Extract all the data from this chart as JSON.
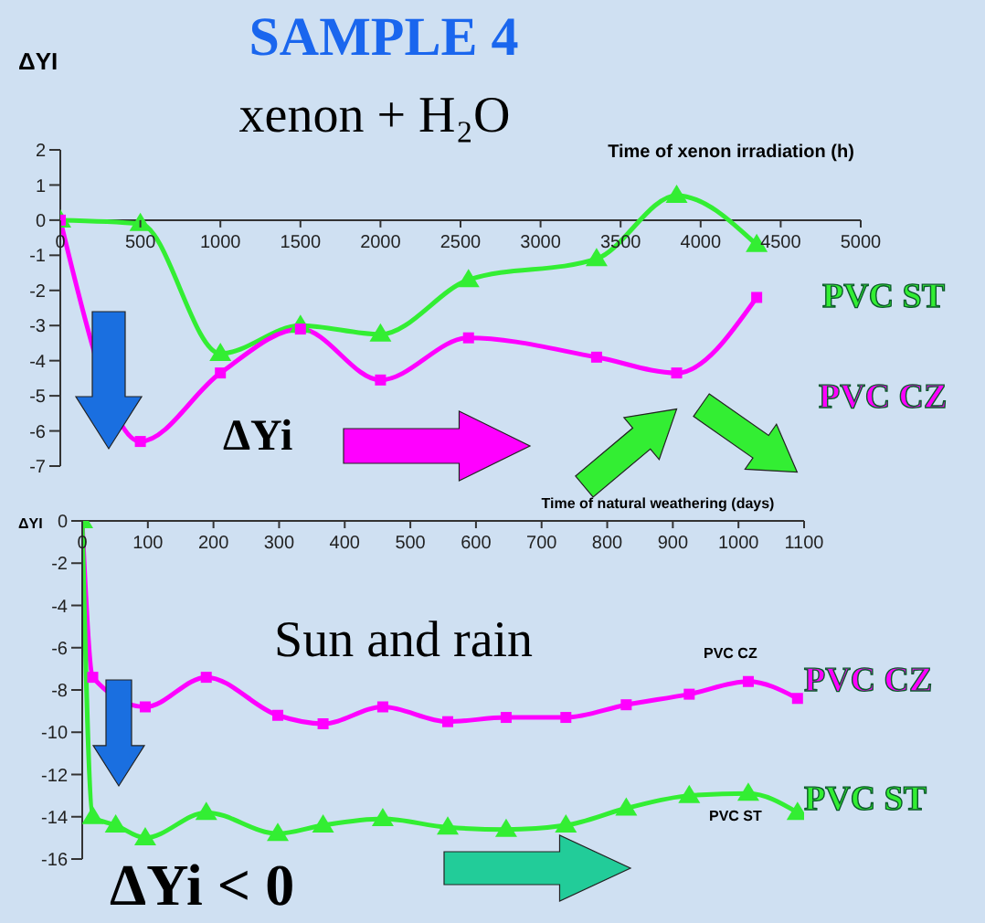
{
  "chart_data": [
    {
      "type": "line",
      "title": "SAMPLE 4",
      "subtitle": "xenon + H₂O",
      "ylabel": "ΔYI",
      "xlabel": "Time of xenon irradiation (h)",
      "annotations": [
        "ΔYi"
      ],
      "xlim": [
        0,
        5000
      ],
      "xticks": [
        0,
        500,
        1000,
        1500,
        2000,
        2500,
        3000,
        3500,
        4000,
        4500,
        5000
      ],
      "ylim": [
        -7,
        2
      ],
      "yticks": [
        -7,
        -6,
        -5,
        -4,
        -3,
        -2,
        -1,
        0,
        1,
        2
      ],
      "series": [
        {
          "name": "PVC ST",
          "color": "#33ee33",
          "marker": "triangle",
          "x": [
            0,
            500,
            1000,
            1500,
            2000,
            2550,
            3350,
            3850,
            4350
          ],
          "values": [
            0,
            -0.1,
            -3.8,
            -3.0,
            -3.25,
            -1.7,
            -1.1,
            0.7,
            -0.7
          ]
        },
        {
          "name": "PVC CZ",
          "color": "#ff00ff",
          "marker": "square",
          "x": [
            0,
            500,
            1000,
            1500,
            2000,
            2550,
            3350,
            3850,
            4350
          ],
          "values": [
            0,
            -6.3,
            -4.35,
            -3.1,
            -4.55,
            -3.35,
            -3.9,
            -4.35,
            -2.2
          ]
        }
      ]
    },
    {
      "type": "line",
      "ylabel": "ΔYI",
      "xlabel": "Time of natural weathering (days)",
      "annotations": [
        "Sun and rain",
        "PVC CZ",
        "PVC ST",
        "ΔYi < 0"
      ],
      "xlim": [
        0,
        1100
      ],
      "xticks": [
        0,
        100,
        200,
        300,
        400,
        500,
        600,
        700,
        800,
        900,
        1000,
        1100
      ],
      "ylim": [
        -16,
        0
      ],
      "yticks": [
        -16,
        -14,
        -12,
        -10,
        -8,
        -6,
        -4,
        -2,
        0
      ],
      "series": [
        {
          "name": "PVC CZ",
          "color": "#ff00ff",
          "marker": "square",
          "x": [
            0,
            16,
            96,
            189,
            298,
            367,
            458,
            557,
            646,
            737,
            829,
            925,
            1015,
            1090
          ],
          "values": [
            0,
            -7.4,
            -8.8,
            -7.4,
            -9.2,
            -9.6,
            -8.8,
            -9.5,
            -9.3,
            -9.3,
            -8.7,
            -8.2,
            -7.6,
            -8.4
          ]
        },
        {
          "name": "PVC ST",
          "color": "#33ee33",
          "marker": "triangle",
          "x": [
            0,
            16,
            51,
            96,
            189,
            298,
            367,
            458,
            557,
            646,
            737,
            829,
            925,
            1015,
            1090
          ],
          "values": [
            0,
            -14.0,
            -14.4,
            -15.0,
            -13.8,
            -14.8,
            -14.4,
            -14.1,
            -14.5,
            -14.6,
            -14.4,
            -13.6,
            -13.0,
            -12.9,
            -13.8
          ]
        }
      ]
    }
  ]
}
